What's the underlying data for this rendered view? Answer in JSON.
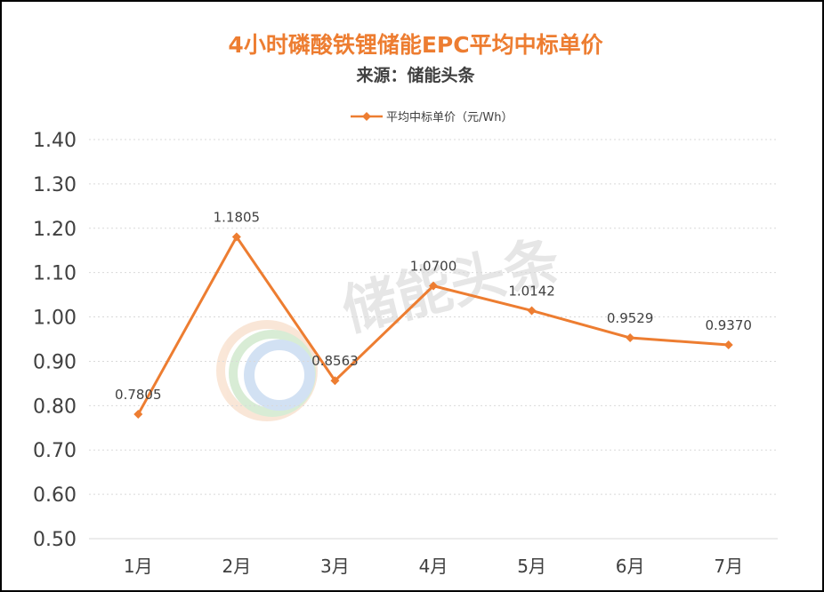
{
  "chart_data": {
    "type": "line",
    "title": "4小时磷酸铁锂储能EPC平均中标单价",
    "subtitle": "来源：储能头条",
    "categories": [
      "1月",
      "2月",
      "3月",
      "4月",
      "5月",
      "6月",
      "7月"
    ],
    "series": [
      {
        "name": "平均中标单价（元/Wh）",
        "values": [
          0.7805,
          1.1805,
          0.8563,
          1.07,
          1.0142,
          0.9529,
          0.937
        ],
        "labels": [
          "0.7805",
          "1.1805",
          "0.8563",
          "1.0700",
          "1.0142",
          "0.9529",
          "0.9370"
        ]
      }
    ],
    "ylim": [
      0.5,
      1.4
    ],
    "yticks": [
      "0.50",
      "0.60",
      "0.70",
      "0.80",
      "0.90",
      "1.00",
      "1.10",
      "1.20",
      "1.30",
      "1.40"
    ],
    "grid": true,
    "legend_position": "top-center",
    "watermark": "储能头条",
    "colors": {
      "title": "#ED7D31",
      "series": "#ED7D31",
      "text": "#404040",
      "grid": "#D9D9D9",
      "watermark": "#D0D0D0"
    }
  }
}
